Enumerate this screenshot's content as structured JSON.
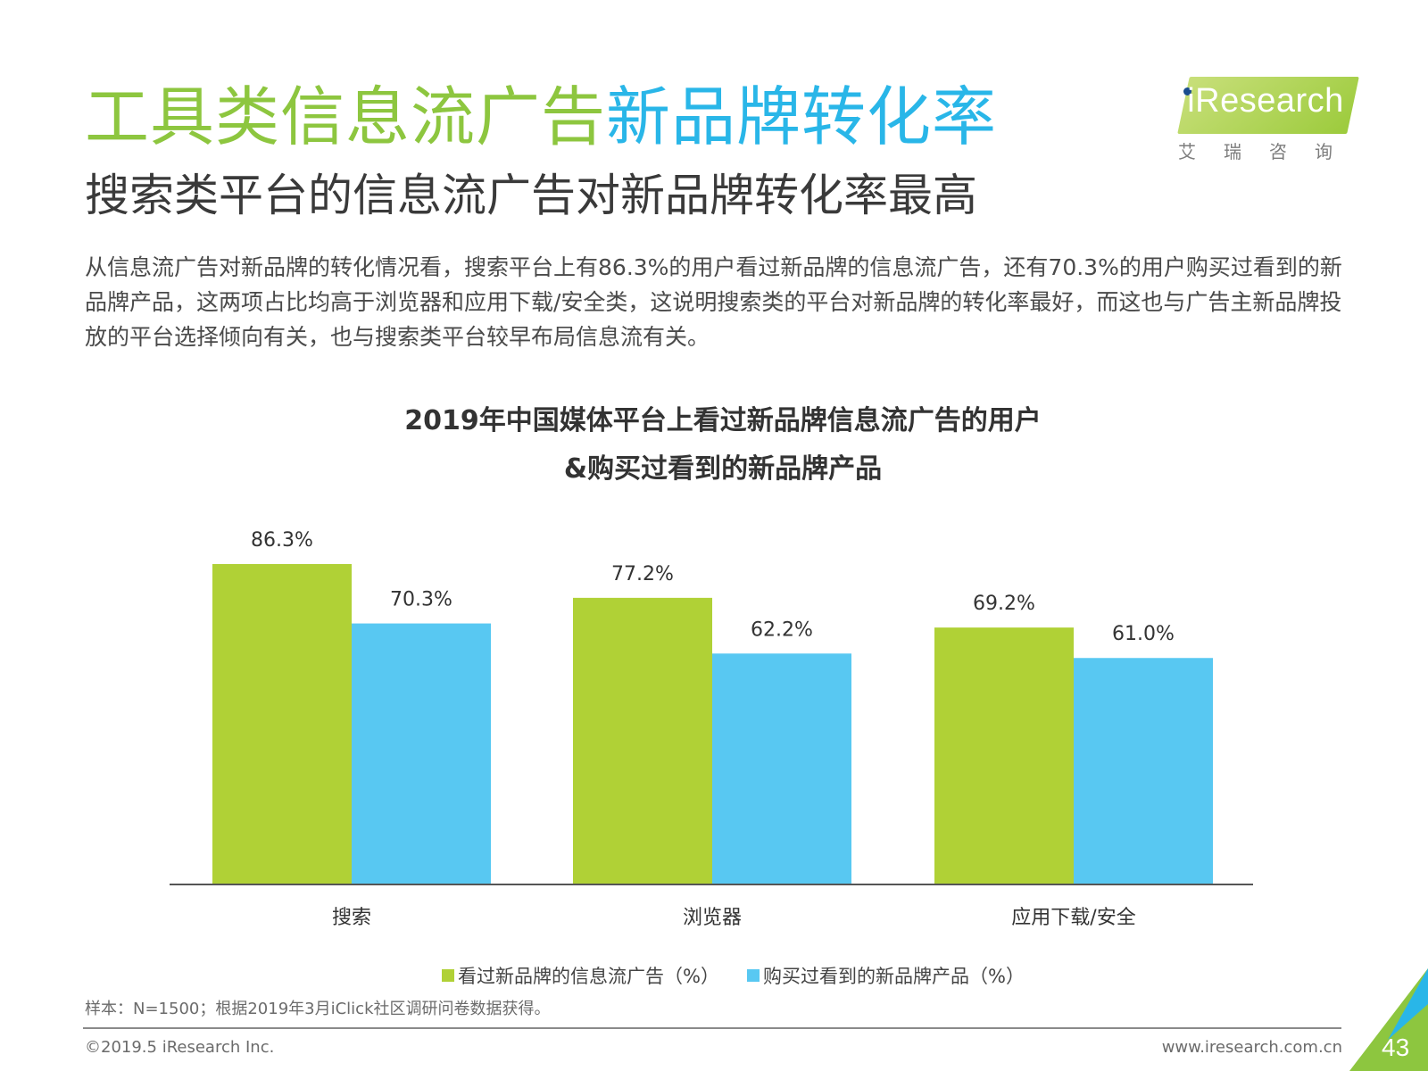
{
  "header": {
    "title_part1": "工具类信息流广告",
    "title_part2": "新品牌转化率",
    "subtitle": "搜索类平台的信息流广告对新品牌转化率最高",
    "body": "从信息流广告对新品牌的转化情况看，搜索平台上有86.3%的用户看过新品牌的信息流广告，还有70.3%的用户购买过看到的新品牌产品，这两项占比均高于浏览器和应用下载/安全类，这说明搜索类的平台对新品牌的转化率最好，而这也与广告主新品牌投放的平台选择倾向有关，也与搜索类平台较早布局信息流有关。"
  },
  "logo": {
    "text": "iResearch",
    "subtext": "艾瑞咨询"
  },
  "chart_data": {
    "type": "bar",
    "title_line1": "2019年中国媒体平台上看过新品牌信息流广告的用户",
    "title_line2": "&购买过看到的新品牌产品",
    "categories": [
      "搜索",
      "浏览器",
      "应用下载/安全"
    ],
    "series": [
      {
        "name": "看过新品牌的信息流广告（%）",
        "color": "#b0d136",
        "values": [
          86.3,
          77.2,
          69.2
        ],
        "labels": [
          "86.3%",
          "77.2%",
          "69.2%"
        ]
      },
      {
        "name": "购买过看到的新品牌产品（%）",
        "color": "#58c8f2",
        "values": [
          70.3,
          62.2,
          61.0
        ],
        "labels": [
          "70.3%",
          "62.2%",
          "61.0%"
        ]
      }
    ],
    "ylim": [
      0,
      100
    ],
    "grid": false,
    "legend_position": "bottom-center"
  },
  "footer": {
    "sample_note": "样本：N=1500；根据2019年3月iClick社区调研问卷数据获得。",
    "copyright": "©2019.5 iResearch Inc.",
    "website": "www.iresearch.com.cn",
    "page_number": "43"
  },
  "colors": {
    "title_green": "#8dc63f",
    "title_blue": "#29b6e8",
    "accent_green": "#b0d136",
    "accent_blue": "#58c8f2"
  }
}
